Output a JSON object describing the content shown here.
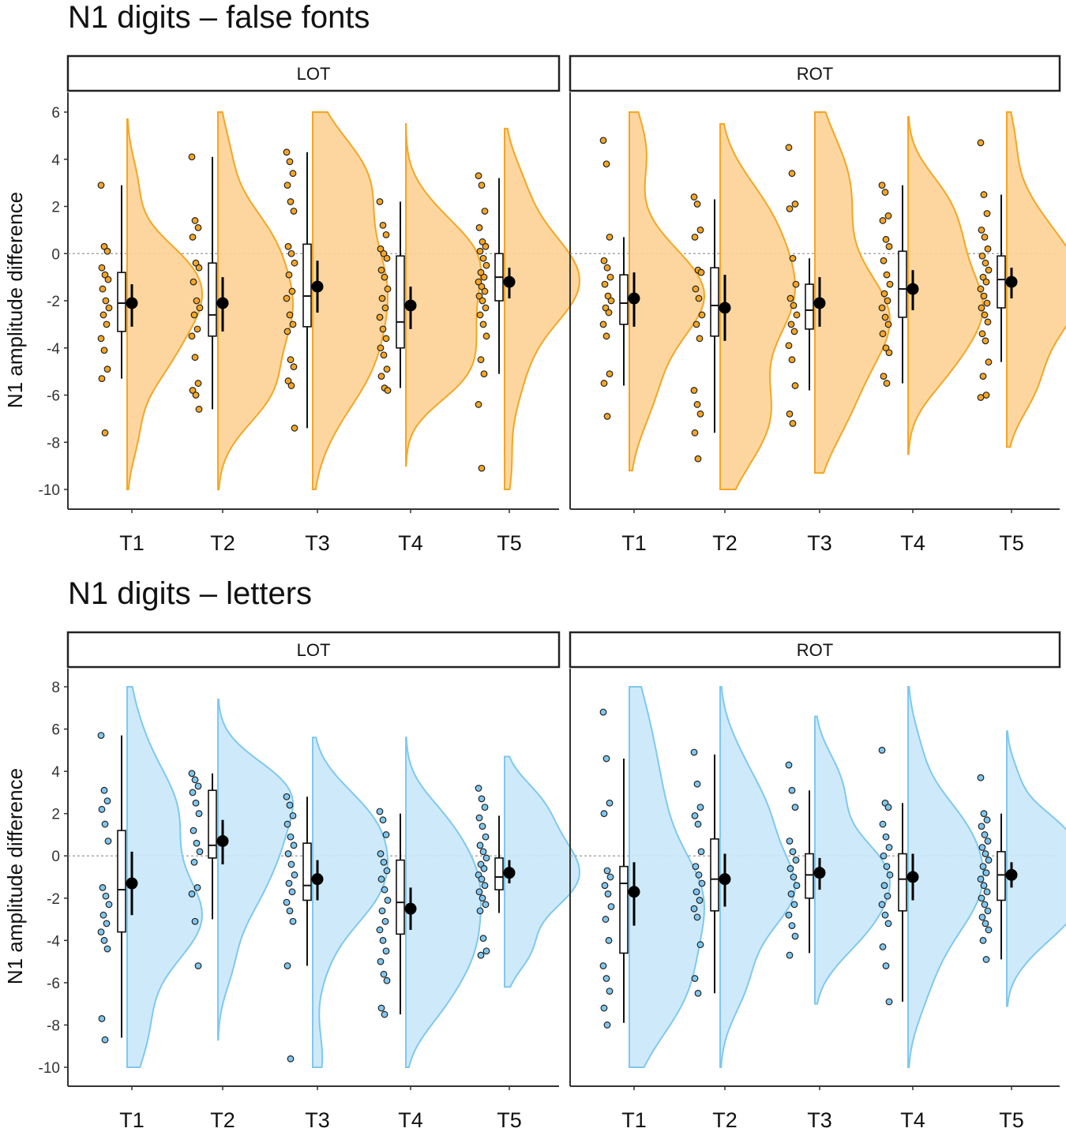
{
  "chart_data": [
    {
      "type": "raincloud",
      "title": "N1 digits – false fonts",
      "ylabel": "N1 amplitude difference",
      "ylim": [
        -10.7,
        6.8
      ],
      "yticks": [
        6,
        4,
        2,
        0,
        -2,
        -4,
        -6,
        -8,
        -10
      ],
      "reference_line": 0,
      "color": "#f5a623",
      "fill": "#fcd294",
      "panels": [
        {
          "label": "LOT",
          "groups": [
            {
              "x": "T1",
              "points": [
                2.9,
                0.3,
                0.1,
                -0.6,
                -0.9,
                -1.1,
                -1.5,
                -2.0,
                -2.3,
                -2.6,
                -3.0,
                -3.6,
                -4.1,
                -4.9,
                -5.3,
                -7.6
              ],
              "box": {
                "min": -5.3,
                "q1": -3.3,
                "median": -2.1,
                "q3": -0.8,
                "max": 2.9
              },
              "mean": -2.1,
              "ci": [
                -3.1,
                -1.3
              ],
              "density_max": 5.7,
              "density_min": -10.0
            },
            {
              "x": "T2",
              "points": [
                4.1,
                1.4,
                1.1,
                0.7,
                -0.4,
                -0.6,
                -1.2,
                -2.0,
                -2.3,
                -2.6,
                -3.2,
                -3.5,
                -4.4,
                -5.5,
                -5.8,
                -6.0,
                -6.6
              ],
              "box": {
                "min": -6.6,
                "q1": -3.5,
                "median": -2.6,
                "q3": -0.4,
                "max": 4.1
              },
              "mean": -2.1,
              "ci": [
                -3.3,
                -1.0
              ],
              "density_max": 6.0,
              "density_min": -10.0
            },
            {
              "x": "T3",
              "points": [
                4.3,
                3.9,
                3.4,
                2.9,
                2.2,
                1.8,
                0.3,
                0.0,
                -0.4,
                -0.9,
                -1.6,
                -1.9,
                -2.6,
                -3.0,
                -3.3,
                -4.5,
                -4.8,
                -5.4,
                -5.6,
                -7.4
              ],
              "box": {
                "min": -7.4,
                "q1": -3.1,
                "median": -1.8,
                "q3": 0.4,
                "max": 4.3
              },
              "mean": -1.4,
              "ci": [
                -2.5,
                -0.3
              ],
              "density_max": 6.0,
              "density_min": -10.0
            },
            {
              "x": "T4",
              "points": [
                2.2,
                1.2,
                0.8,
                0.2,
                0.0,
                -0.2,
                -0.7,
                -1.0,
                -1.5,
                -1.9,
                -2.3,
                -2.7,
                -3.2,
                -3.6,
                -4.0,
                -4.3,
                -4.9,
                -5.2,
                -5.7,
                -5.8
              ],
              "box": {
                "min": -5.7,
                "q1": -4.0,
                "median": -2.9,
                "q3": -0.1,
                "max": 2.2
              },
              "mean": -2.2,
              "ci": [
                -3.2,
                -1.4
              ],
              "density_max": 5.5,
              "density_min": -9.0
            },
            {
              "x": "T5",
              "points": [
                3.3,
                2.9,
                1.8,
                1.1,
                0.5,
                0.3,
                0.1,
                -0.2,
                -0.5,
                -0.8,
                -1.0,
                -1.2,
                -1.4,
                -1.6,
                -1.8,
                -2.0,
                -2.3,
                -2.6,
                -3.0,
                -3.5,
                -4.5,
                -5.1,
                -6.4,
                -9.1
              ],
              "box": {
                "min": -5.1,
                "q1": -2.0,
                "median": -1.0,
                "q3": 0.0,
                "max": 3.2
              },
              "mean": -1.2,
              "ci": [
                -1.9,
                -0.6
              ],
              "density_max": 5.3,
              "density_min": -10.0
            }
          ]
        },
        {
          "label": "ROT",
          "groups": [
            {
              "x": "T1",
              "points": [
                4.8,
                3.8,
                0.7,
                -0.3,
                -0.6,
                -1.0,
                -1.3,
                -1.8,
                -2.0,
                -2.3,
                -2.5,
                -3.0,
                -3.5,
                -5.1,
                -5.5,
                -6.9
              ],
              "box": {
                "min": -5.6,
                "q1": -3.0,
                "median": -2.1,
                "q3": -0.9,
                "max": 0.7
              },
              "mean": -1.9,
              "ci": [
                -3.1,
                -0.8
              ],
              "density_max": 6.0,
              "density_min": -9.2
            },
            {
              "x": "T2",
              "points": [
                2.4,
                2.1,
                1.0,
                0.7,
                -0.7,
                -0.8,
                -1.5,
                -1.9,
                -2.6,
                -3.0,
                -3.6,
                -5.8,
                -6.4,
                -6.8,
                -7.6,
                -8.7
              ],
              "box": {
                "min": -7.6,
                "q1": -3.5,
                "median": -2.2,
                "q3": -0.6,
                "max": 2.3
              },
              "mean": -2.3,
              "ci": [
                -3.7,
                -0.9
              ],
              "density_max": 5.5,
              "density_min": -10.0
            },
            {
              "x": "T3",
              "points": [
                4.5,
                3.4,
                2.1,
                1.9,
                -0.2,
                -1.3,
                -1.9,
                -2.2,
                -2.6,
                -3.0,
                -3.3,
                -3.9,
                -4.5,
                -5.6,
                -6.8,
                -7.2
              ],
              "box": {
                "min": -5.8,
                "q1": -3.2,
                "median": -2.4,
                "q3": -1.3,
                "max": -0.2
              },
              "mean": -2.1,
              "ci": [
                -3.1,
                -1.0
              ],
              "density_max": 6.0,
              "density_min": -9.3
            },
            {
              "x": "T4",
              "points": [
                2.9,
                2.6,
                1.6,
                1.4,
                0.6,
                0.3,
                -0.3,
                -0.9,
                -1.3,
                -1.7,
                -2.0,
                -2.3,
                -2.7,
                -3.0,
                -3.4,
                -4.0,
                -4.2,
                -5.2,
                -5.5
              ],
              "box": {
                "min": -5.5,
                "q1": -2.7,
                "median": -1.5,
                "q3": 0.1,
                "max": 2.9
              },
              "mean": -1.5,
              "ci": [
                -2.4,
                -0.7
              ],
              "density_max": 5.8,
              "density_min": -8.5
            },
            {
              "x": "T5",
              "points": [
                4.7,
                2.5,
                1.7,
                1.0,
                0.7,
                0.2,
                -0.1,
                -0.4,
                -0.7,
                -1.0,
                -1.2,
                -1.5,
                -1.8,
                -2.1,
                -2.3,
                -2.6,
                -2.9,
                -3.4,
                -3.7,
                -4.6,
                -5.2,
                -6.0,
                -6.1
              ],
              "box": {
                "min": -4.6,
                "q1": -2.3,
                "median": -1.1,
                "q3": -0.1,
                "max": 2.5
              },
              "mean": -1.2,
              "ci": [
                -1.9,
                -0.6
              ],
              "density_max": 6.0,
              "density_min": -8.2
            }
          ]
        }
      ]
    },
    {
      "type": "raincloud",
      "title": "N1 digits – letters",
      "ylabel": "N1 amplitude difference",
      "ylim": [
        -10.9,
        8.7
      ],
      "yticks": [
        8,
        6,
        4,
        2,
        0,
        -2,
        -4,
        -6,
        -8,
        -10
      ],
      "reference_line": 0,
      "color": "#7fc8f0",
      "fill": "#c9e8fa",
      "panels": [
        {
          "label": "LOT",
          "groups": [
            {
              "x": "T1",
              "points": [
                5.7,
                3.1,
                2.6,
                2.2,
                1.5,
                0.7,
                -1.5,
                -1.9,
                -2.3,
                -2.8,
                -3.2,
                -3.6,
                -4.0,
                -4.4,
                -7.7,
                -8.7
              ],
              "box": {
                "min": -8.6,
                "q1": -3.6,
                "median": -1.6,
                "q3": 1.2,
                "max": 5.7
              },
              "mean": -1.3,
              "ci": [
                -2.8,
                0.2
              ],
              "density_max": 8.0,
              "density_min": -10.0
            },
            {
              "x": "T2",
              "points": [
                3.9,
                3.6,
                3.3,
                3.0,
                2.5,
                2.0,
                1.2,
                0.6,
                0.2,
                -0.3,
                -1.5,
                -1.8,
                -3.1,
                -5.2
              ],
              "box": {
                "min": -3.0,
                "q1": -0.1,
                "median": 0.5,
                "q3": 3.1,
                "max": 3.9
              },
              "mean": 0.7,
              "ci": [
                -0.4,
                1.7
              ],
              "density_max": 7.4,
              "density_min": -8.7
            },
            {
              "x": "T3",
              "points": [
                2.8,
                2.4,
                1.9,
                1.5,
                0.9,
                0.5,
                0.1,
                -0.4,
                -0.9,
                -1.3,
                -1.7,
                -2.2,
                -2.6,
                -3.1,
                -5.2,
                -9.6
              ],
              "box": {
                "min": -5.2,
                "q1": -2.1,
                "median": -1.4,
                "q3": 0.6,
                "max": 2.8
              },
              "mean": -1.1,
              "ci": [
                -2.1,
                -0.2
              ],
              "density_max": 5.6,
              "density_min": -10.0
            },
            {
              "x": "T4",
              "points": [
                2.1,
                1.7,
                1.0,
                0.1,
                -0.3,
                -0.7,
                -1.1,
                -1.6,
                -2.1,
                -2.6,
                -3.1,
                -3.5,
                -4.0,
                -4.5,
                -5.0,
                -5.6,
                -5.9,
                -7.2,
                -7.5
              ],
              "box": {
                "min": -7.5,
                "q1": -3.7,
                "median": -2.2,
                "q3": -0.2,
                "max": 2.0
              },
              "mean": -2.5,
              "ci": [
                -3.5,
                -1.5
              ],
              "density_max": 5.6,
              "density_min": -10.0
            },
            {
              "x": "T5",
              "points": [
                3.2,
                2.7,
                2.3,
                1.8,
                1.4,
                0.9,
                0.5,
                0.2,
                -0.1,
                -0.4,
                -0.6,
                -0.9,
                -1.1,
                -1.4,
                -1.7,
                -2.0,
                -2.3,
                -2.6,
                -3.9,
                -4.5,
                -4.7
              ],
              "box": {
                "min": -2.7,
                "q1": -1.6,
                "median": -1.0,
                "q3": -0.1,
                "max": 1.9
              },
              "mean": -0.8,
              "ci": [
                -1.3,
                -0.2
              ],
              "density_max": 4.7,
              "density_min": -6.2
            }
          ]
        },
        {
          "label": "ROT",
          "groups": [
            {
              "x": "T1",
              "points": [
                6.8,
                4.6,
                2.5,
                2.0,
                -0.7,
                -1.0,
                -1.4,
                -1.8,
                -2.4,
                -3.0,
                -4.0,
                -5.2,
                -5.8,
                -6.4,
                -7.2,
                -8.0
              ],
              "box": {
                "min": -7.9,
                "q1": -4.6,
                "median": -1.3,
                "q3": -0.5,
                "max": 4.6
              },
              "mean": -1.7,
              "ci": [
                -3.3,
                -0.3
              ],
              "density_max": 8.0,
              "density_min": -10.0
            },
            {
              "x": "T2",
              "points": [
                4.9,
                3.4,
                2.3,
                1.9,
                1.5,
                0.2,
                -0.5,
                -0.9,
                -1.3,
                -1.7,
                -2.1,
                -2.5,
                -2.9,
                -4.2,
                -5.8,
                -6.5
              ],
              "box": {
                "min": -6.5,
                "q1": -2.6,
                "median": -1.1,
                "q3": 0.8,
                "max": 4.8
              },
              "mean": -1.1,
              "ci": [
                -2.4,
                0.1
              ],
              "density_max": 8.0,
              "density_min": -10.0
            },
            {
              "x": "T3",
              "points": [
                4.3,
                3.1,
                2.3,
                0.7,
                0.2,
                -0.2,
                -0.6,
                -1.0,
                -1.4,
                -1.8,
                -2.3,
                -2.8,
                -3.3,
                -3.8,
                -4.7
              ],
              "box": {
                "min": -4.6,
                "q1": -2.0,
                "median": -0.9,
                "q3": 0.1,
                "max": 3.1
              },
              "mean": -0.8,
              "ci": [
                -1.6,
                -0.1
              ],
              "density_max": 6.6,
              "density_min": -7.0
            },
            {
              "x": "T4",
              "points": [
                5.0,
                2.5,
                2.3,
                1.5,
                0.9,
                0.4,
                0.0,
                -0.5,
                -0.9,
                -1.4,
                -1.9,
                -2.3,
                -2.8,
                -3.2,
                -4.3,
                -5.2,
                -6.9
              ],
              "box": {
                "min": -6.9,
                "q1": -2.6,
                "median": -1.1,
                "q3": 0.1,
                "max": 2.5
              },
              "mean": -1.0,
              "ci": [
                -2.1,
                0.1
              ],
              "density_max": 8.0,
              "density_min": -10.0
            },
            {
              "x": "T5",
              "points": [
                3.7,
                2.0,
                1.7,
                1.4,
                1.0,
                0.7,
                0.4,
                0.1,
                -0.2,
                -0.5,
                -0.8,
                -1.1,
                -1.4,
                -1.7,
                -2.0,
                -2.3,
                -2.6,
                -2.9,
                -3.2,
                -3.5,
                -4.0,
                -4.9
              ],
              "box": {
                "min": -4.9,
                "q1": -2.1,
                "median": -0.9,
                "q3": 0.2,
                "max": 2.0
              },
              "mean": -0.9,
              "ci": [
                -1.5,
                -0.3
              ],
              "density_max": 5.9,
              "density_min": -7.1
            }
          ]
        }
      ]
    }
  ]
}
